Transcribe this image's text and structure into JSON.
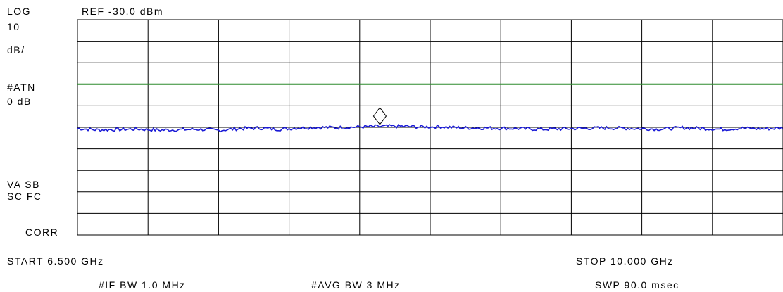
{
  "header": {
    "ref_level": "REF -30.0 dBm"
  },
  "left_panel": {
    "scale_mode": "LOG",
    "scale_value": "10",
    "scale_unit": "dB/",
    "atten_label": "#ATN",
    "atten_value": "0 dB",
    "status_line1": "VA SB",
    "status_line2": "SC FC",
    "corr": "CORR"
  },
  "footer": {
    "start": "START 6.500 GHz",
    "stop": "STOP 10.000 GHz",
    "if_bw": "#IF BW 1.0 MHz",
    "avg_bw": "#AVG BW 3 MHz",
    "sweep": "SWP 90.0 msec"
  },
  "colors": {
    "grid": "#000000",
    "threshold": "#2e8b2e",
    "trace": "#1a1ad6"
  },
  "chart_data": {
    "type": "line",
    "x_unit": "GHz",
    "xlim": [
      6.5,
      10.0
    ],
    "y_unit": "dBm",
    "ylim": [
      -130,
      -30
    ],
    "grid": true,
    "divisions": {
      "x": 10,
      "y": 10
    },
    "threshold_line": {
      "value": -60
    },
    "marker": {
      "shape": "diamond",
      "x": 8.0,
      "y": -79
    },
    "series": [
      {
        "x": [
          6.5,
          6.6,
          6.7,
          6.8,
          6.9,
          7.0,
          7.1,
          7.2,
          7.3,
          7.4,
          7.5,
          7.6,
          7.7,
          7.8,
          7.9,
          8.0,
          8.1,
          8.2,
          8.3,
          8.4,
          8.5,
          8.6,
          8.7,
          8.8,
          8.9,
          9.0,
          9.1,
          9.2,
          9.3,
          9.4,
          9.5,
          9.6,
          9.7,
          9.8,
          9.9,
          10.0
        ],
        "y": [
          -80.5,
          -81.2,
          -81.0,
          -80.8,
          -81.3,
          -81.1,
          -80.9,
          -81.4,
          -80.6,
          -80.3,
          -80.9,
          -80.2,
          -80.0,
          -80.1,
          -79.8,
          -79.6,
          -79.5,
          -79.8,
          -79.7,
          -80.2,
          -80.3,
          -80.4,
          -80.6,
          -80.9,
          -80.7,
          -80.5,
          -80.3,
          -80.4,
          -80.6,
          -80.8,
          -80.2,
          -80.5,
          -80.9,
          -80.4,
          -80.7,
          -80.3
        ]
      }
    ]
  }
}
